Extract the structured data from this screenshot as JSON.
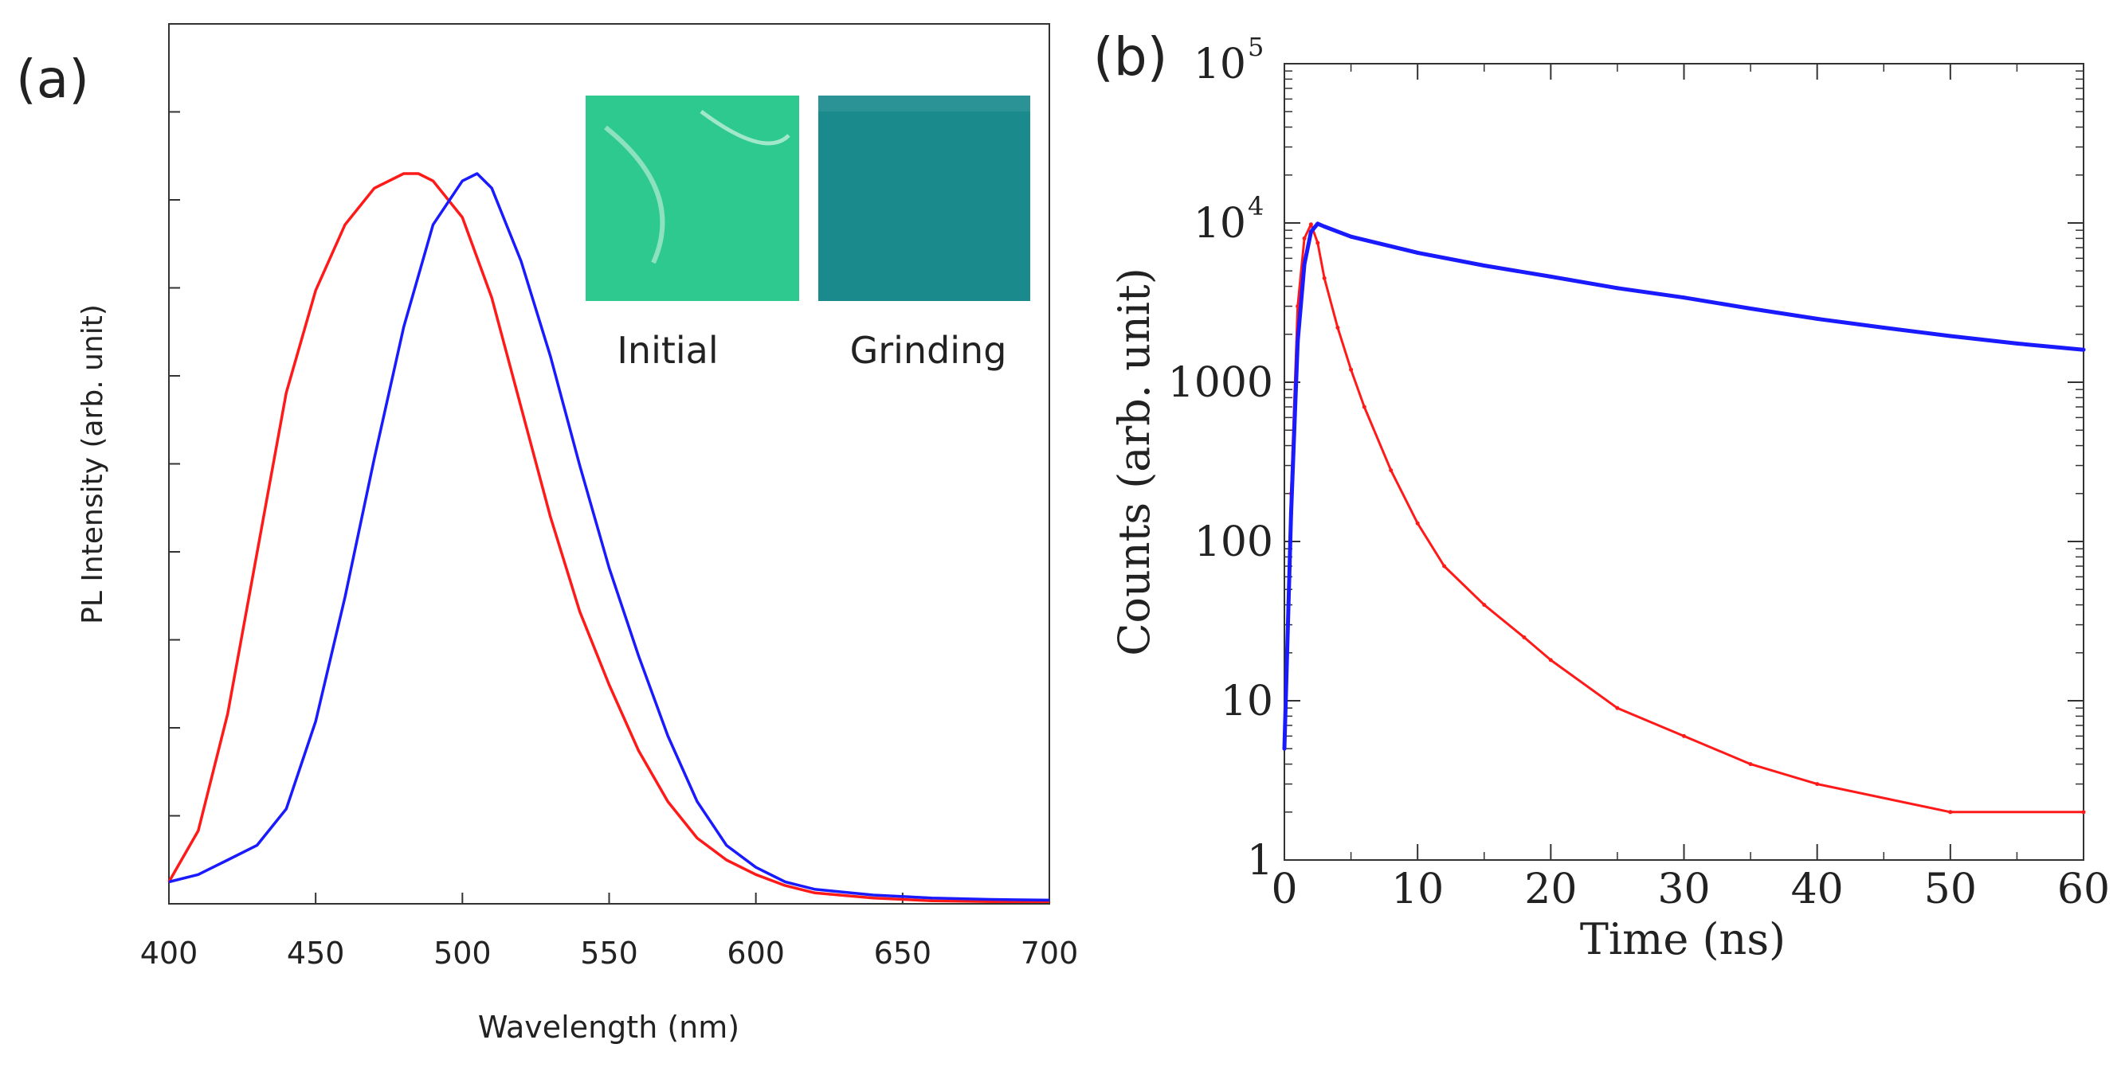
{
  "chart_data": [
    {
      "type": "line",
      "panel_label": "(a)",
      "xlabel": "Wavelength (nm)",
      "ylabel": "PL Intensity (arb. unit)",
      "xlim": [
        400,
        700
      ],
      "ylim": [
        0,
        1.0
      ],
      "x_ticks": [
        "400",
        "450",
        "500",
        "550",
        "600",
        "650",
        "700"
      ],
      "series": [
        {
          "name": "Initial",
          "color": "#ff1a1a",
          "x": [
            400,
            410,
            420,
            430,
            440,
            450,
            460,
            470,
            480,
            485,
            490,
            500,
            510,
            520,
            530,
            540,
            550,
            560,
            570,
            580,
            590,
            600,
            610,
            620,
            640,
            660,
            680,
            700
          ],
          "y": [
            0.03,
            0.1,
            0.26,
            0.48,
            0.7,
            0.84,
            0.93,
            0.98,
            1.0,
            1.0,
            0.99,
            0.94,
            0.83,
            0.68,
            0.53,
            0.4,
            0.3,
            0.21,
            0.14,
            0.09,
            0.06,
            0.04,
            0.025,
            0.015,
            0.008,
            0.004,
            0.003,
            0.003
          ]
        },
        {
          "name": "Grinding",
          "color": "#1a1aff",
          "x": [
            400,
            410,
            420,
            430,
            440,
            450,
            460,
            470,
            480,
            490,
            500,
            505,
            510,
            520,
            530,
            540,
            550,
            560,
            570,
            580,
            590,
            600,
            610,
            620,
            640,
            660,
            680,
            700
          ],
          "y": [
            0.03,
            0.04,
            0.06,
            0.08,
            0.13,
            0.25,
            0.42,
            0.61,
            0.79,
            0.93,
            0.99,
            1.0,
            0.98,
            0.88,
            0.75,
            0.6,
            0.46,
            0.34,
            0.23,
            0.14,
            0.08,
            0.05,
            0.03,
            0.02,
            0.012,
            0.008,
            0.006,
            0.005
          ]
        }
      ],
      "inset": {
        "images": [
          {
            "label": "Initial",
            "color": "#2ec98f"
          },
          {
            "label": "Grinding",
            "color": "#1a8a8c"
          }
        ]
      }
    },
    {
      "type": "scatter",
      "panel_label": "(b)",
      "xlabel": "Time (ns)",
      "ylabel": "Counts (arb. unit)",
      "xlim": [
        0,
        60
      ],
      "ylim": [
        1,
        100000
      ],
      "yscale": "log",
      "x_ticks": [
        "0",
        "10",
        "20",
        "30",
        "40",
        "50",
        "60"
      ],
      "y_ticks": [
        {
          "value": 1,
          "label": "1"
        },
        {
          "value": 10,
          "label": "10"
        },
        {
          "value": 100,
          "label": "100"
        },
        {
          "value": 1000,
          "label": "1000"
        },
        {
          "value": 10000,
          "label": "10",
          "exp": "4"
        },
        {
          "value": 100000,
          "label": "10",
          "exp": "5"
        }
      ],
      "series": [
        {
          "name": "Initial",
          "color": "#ff1a1a",
          "x": [
            0,
            0.5,
            1.0,
            1.5,
            2.0,
            2.5,
            3,
            4,
            5,
            6,
            8,
            10,
            12,
            15,
            18,
            20,
            25,
            30,
            35,
            40,
            50,
            60
          ],
          "y": [
            5,
            200,
            3000,
            8000,
            9800,
            7500,
            4500,
            2200,
            1200,
            700,
            280,
            130,
            70,
            40,
            25,
            18,
            9,
            6,
            4,
            3,
            2,
            2
          ]
        },
        {
          "name": "Grinding",
          "color": "#1a1aff",
          "x": [
            0,
            0.5,
            1.0,
            1.5,
            2.0,
            2.5,
            3,
            5,
            10,
            15,
            20,
            25,
            30,
            35,
            40,
            45,
            50,
            55,
            60
          ],
          "y": [
            5,
            150,
            1800,
            5500,
            8800,
            9900,
            9500,
            8200,
            6500,
            5400,
            4600,
            3900,
            3400,
            2900,
            2500,
            2200,
            1950,
            1750,
            1600
          ]
        }
      ]
    }
  ]
}
